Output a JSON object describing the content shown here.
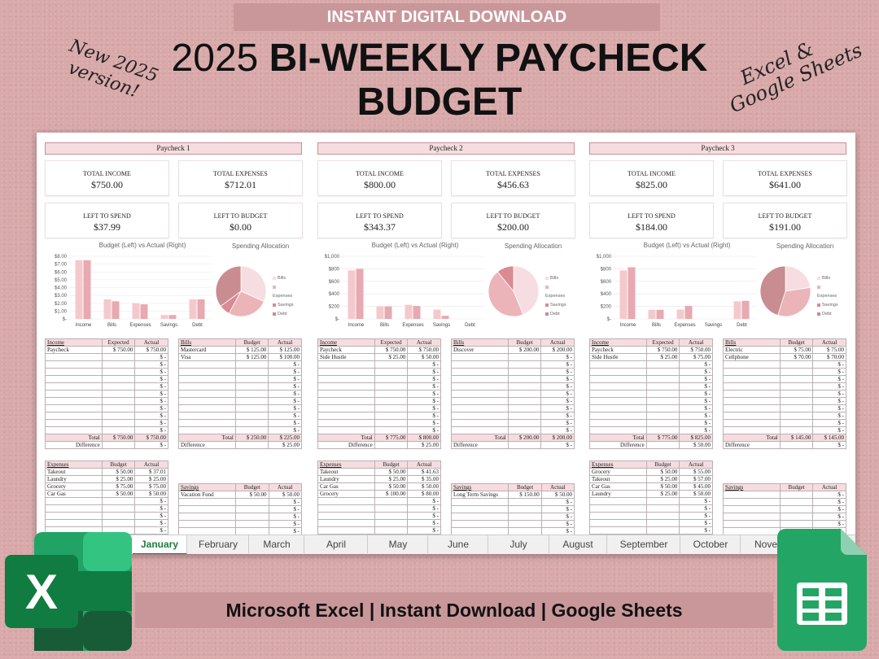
{
  "banner": "INSTANT DIGITAL DOWNLOAD",
  "title": {
    "line1_light": "2025",
    "line1_bold": "BI-WEEKLY PAYCHECK",
    "line2": "BUDGET"
  },
  "badge_left": {
    "line1": "New 2025",
    "line2": "version!"
  },
  "badge_right": {
    "line1": "Excel &",
    "line2": "Google Sheets"
  },
  "bottom_bar": "Microsoft Excel | Instant Download | Google Sheets",
  "tabs": [
    "January",
    "February",
    "March",
    "April",
    "May",
    "June",
    "July",
    "August",
    "September",
    "October",
    "Nove"
  ],
  "active_tab": "January",
  "kpi_labels": {
    "income": "TOTAL INCOME",
    "expenses": "TOTAL EXPENSES",
    "spend": "LEFT TO SPEND",
    "budget": "LEFT TO BUDGET"
  },
  "chart_labels": {
    "bar_title": "Budget (Left) vs Actual (Right)",
    "pie_title": "Spending Allocation"
  },
  "legend": [
    "Bills",
    "Expenses",
    "Savings",
    "Debt"
  ],
  "colors": {
    "budget_bar": "#f4c9cd",
    "actual_bar": "#e8a9b0",
    "pie_bills": "#f6dde1",
    "pie_expenses": "#ebb4b9",
    "pie_savings": "#d98a92",
    "pie_debt": "#c98c90"
  },
  "paychecks": [
    {
      "name": "Paycheck 1",
      "total_income": "$750.00",
      "total_expenses": "$712.01",
      "left_to_spend": "$37.99",
      "left_to_budget": "$0.00",
      "income": {
        "headers": [
          "Income",
          "Expected",
          "Actual"
        ],
        "rows": [
          [
            "Paycheck",
            "$     750.00",
            "$     750.00"
          ]
        ],
        "total": [
          "Total",
          "$   750.00",
          "$     750.00"
        ],
        "difference": [
          "Difference",
          "$          -"
        ]
      },
      "bills": {
        "headers": [
          "Bills",
          "Budget",
          "Actual"
        ],
        "rows": [
          [
            "Mastercard",
            "$     125.00",
            "$     125.00"
          ],
          [
            "Visa",
            "$     125.00",
            "$     100.00"
          ]
        ],
        "total": [
          "Total",
          "$   250.00",
          "$       225.00"
        ],
        "difference": [
          "Difference",
          "$        25.00"
        ]
      },
      "expenses": {
        "headers": [
          "Expenses",
          "Budget",
          "Actual"
        ],
        "rows": [
          [
            "Takeout",
            "$     50.00",
            "$     37.01"
          ],
          [
            "Laundry",
            "$     25.00",
            "$     25.00"
          ],
          [
            "Grocery",
            "$     75.00",
            "$     75.00"
          ],
          [
            "Car Gas",
            "$     50.00",
            "$     50.00"
          ]
        ]
      },
      "savings": {
        "headers": [
          "Savings",
          "Budget",
          "Actual"
        ],
        "rows": [
          [
            "Vacation Fund",
            "$     50.00",
            "$     50.00"
          ]
        ]
      }
    },
    {
      "name": "Paycheck 2",
      "total_income": "$800.00",
      "total_expenses": "$456.63",
      "left_to_spend": "$343.37",
      "left_to_budget": "$200.00",
      "income": {
        "headers": [
          "Income",
          "Expected",
          "Actual"
        ],
        "rows": [
          [
            "Paycheck",
            "$     750.00",
            "$     750.00"
          ],
          [
            "Side Hustle",
            "$       25.00",
            "$       50.00"
          ]
        ],
        "total": [
          "Total",
          "$   775.00",
          "$     800.00"
        ],
        "difference": [
          "Difference",
          "$        25.00"
        ]
      },
      "bills": {
        "headers": [
          "Bills",
          "Budget",
          "Actual"
        ],
        "rows": [
          [
            "Discover",
            "$     200.00",
            "$     200.00"
          ]
        ],
        "total": [
          "Total",
          "$   200.00",
          "$       200.00"
        ],
        "difference": [
          "Difference",
          "$            -"
        ]
      },
      "expenses": {
        "headers": [
          "Expenses",
          "Budget",
          "Actual"
        ],
        "rows": [
          [
            "Takeout",
            "$     50.00",
            "$     41.63"
          ],
          [
            "Laundry",
            "$     25.00",
            "$     35.00"
          ],
          [
            "Car Gas",
            "$     50.00",
            "$     50.00"
          ],
          [
            "Grocery",
            "$   100.00",
            "$     80.00"
          ]
        ]
      },
      "savings": {
        "headers": [
          "Savings",
          "Budget",
          "Actual"
        ],
        "rows": [
          [
            "Long Term Savings",
            "$   150.00",
            "$     50.00"
          ]
        ]
      }
    },
    {
      "name": "Paycheck 3",
      "total_income": "$825.00",
      "total_expenses": "$641.00",
      "left_to_spend": "$184.00",
      "left_to_budget": "$191.00",
      "income": {
        "headers": [
          "Income",
          "Expected",
          "Actual"
        ],
        "rows": [
          [
            "Paycheck",
            "$     750.00",
            "$     750.00"
          ],
          [
            "Side Hustle",
            "$       25.00",
            "$       75.00"
          ]
        ],
        "total": [
          "Total",
          "$   775.00",
          "$     825.00"
        ],
        "difference": [
          "Difference",
          "$        50.00"
        ]
      },
      "bills": {
        "headers": [
          "Bills",
          "Budget",
          "Actual"
        ],
        "rows": [
          [
            "Electric",
            "$       75.00",
            "$       75.00"
          ],
          [
            "Cellphone",
            "$       70.00",
            "$       70.00"
          ]
        ],
        "total": [
          "Total",
          "$   145.00",
          "$       145.00"
        ],
        "difference": [
          "Difference",
          "$            -"
        ]
      },
      "expenses": {
        "headers": [
          "Expenses",
          "Budget",
          "Actual"
        ],
        "rows": [
          [
            "Grocery",
            "$     50.00",
            "$     55.00"
          ],
          [
            "Takeout",
            "$     25.00",
            "$     57.00"
          ],
          [
            "Car Gas",
            "$     50.00",
            "$     45.00"
          ],
          [
            "Laundry",
            "$     25.00",
            "$     50.00"
          ]
        ]
      },
      "savings": {
        "headers": [
          "Savings",
          "Budget",
          "Actual"
        ],
        "rows": []
      }
    }
  ],
  "chart_data": [
    {
      "type": "bar",
      "title": "Budget (Left) vs Actual (Right)",
      "categories": [
        "Income",
        "Bills",
        "Expenses",
        "Savings",
        "Debt"
      ],
      "series": [
        {
          "name": "Budget",
          "values": [
            750,
            250,
            200,
            50,
            250
          ]
        },
        {
          "name": "Actual",
          "values": [
            750,
            225,
            187.01,
            50,
            250
          ]
        }
      ],
      "yticks": [
        "$-",
        "$1.00",
        "$2.00",
        "$3.00",
        "$4.00",
        "$5.00",
        "$6.00",
        "$7.00",
        "$8.00"
      ],
      "ylim": [
        0,
        800
      ]
    },
    {
      "type": "pie",
      "title": "Spending Allocation",
      "categories": [
        "Bills",
        "Expenses",
        "Savings",
        "Debt"
      ],
      "values": [
        225,
        187.01,
        50,
        250
      ]
    },
    {
      "type": "bar",
      "title": "Budget (Left) vs Actual (Right)",
      "categories": [
        "Income",
        "Bills",
        "Expenses",
        "Savings",
        "Debt"
      ],
      "series": [
        {
          "name": "Budget",
          "values": [
            775,
            200,
            225,
            150,
            0
          ]
        },
        {
          "name": "Actual",
          "values": [
            800,
            200,
            206.63,
            50,
            0
          ]
        }
      ],
      "yticks": [
        "$-",
        "$200",
        "$400",
        "$600",
        "$800",
        "$1,000"
      ],
      "ylim": [
        0,
        1000
      ]
    },
    {
      "type": "pie",
      "title": "Spending Allocation",
      "categories": [
        "Bills",
        "Expenses",
        "Savings",
        "Debt"
      ],
      "values": [
        200,
        206.63,
        50,
        0
      ]
    },
    {
      "type": "bar",
      "title": "Budget (Left) vs Actual (Right)",
      "categories": [
        "Income",
        "Bills",
        "Expenses",
        "Savings",
        "Debt"
      ],
      "series": [
        {
          "name": "Budget",
          "values": [
            775,
            145,
            150,
            0,
            280
          ]
        },
        {
          "name": "Actual",
          "values": [
            825,
            145,
            207,
            0,
            289
          ]
        }
      ],
      "yticks": [
        "$-",
        "$200",
        "$400",
        "$600",
        "$800",
        "$1,000"
      ],
      "ylim": [
        0,
        1000
      ]
    },
    {
      "type": "pie",
      "title": "Spending Allocation",
      "categories": [
        "Bills",
        "Expenses",
        "Savings",
        "Debt"
      ],
      "values": [
        145,
        207,
        0,
        289
      ]
    }
  ]
}
